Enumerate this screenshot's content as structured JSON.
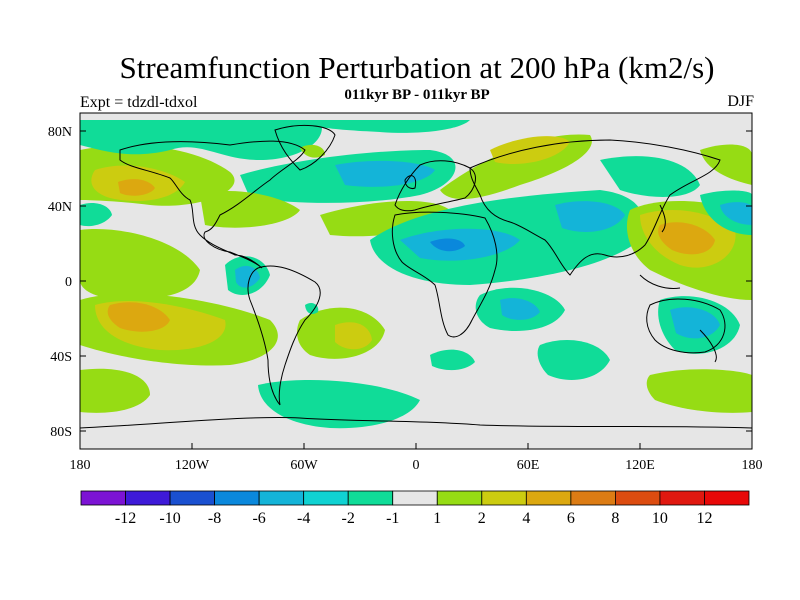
{
  "title": "Streamfunction Perturbation at 200 hPa (km2/s)",
  "subtitle": "011kyr BP - 011kyr BP",
  "left_label": "Expt = tdzdl-tdxol",
  "right_label": "DJF",
  "lat_ticks": [
    "80N",
    "40N",
    "0",
    "40S",
    "80S"
  ],
  "lon_ticks": [
    "180",
    "120W",
    "60W",
    "0",
    "60E",
    "120E",
    "180"
  ],
  "colorbar": {
    "labels": [
      "-12",
      "-10",
      "-8",
      "-6",
      "-4",
      "-2",
      "-1",
      "1",
      "2",
      "4",
      "6",
      "8",
      "10",
      "12"
    ],
    "colors": [
      "#7c13d4",
      "#3e1ad8",
      "#1a50d0",
      "#0a88dc",
      "#14b4d8",
      "#10d2d2",
      "#10dc98",
      "#e6e6e6",
      "#96dc14",
      "#cccc10",
      "#dca810",
      "#dc7c14",
      "#dc4c10",
      "#e01810",
      "#e80808"
    ]
  },
  "fields": {
    "background": "#e6e6e6",
    "land_outline": "#000000"
  }
}
